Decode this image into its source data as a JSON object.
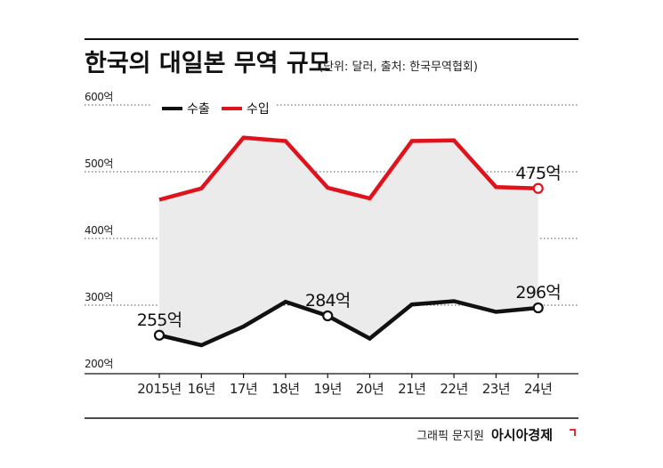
{
  "chart_data": {
    "type": "line",
    "title": "한국의 대일본 무역 규모",
    "subtitle": "(단위: 달러, 출처: 한국무역협회)",
    "categories": [
      "2015년",
      "16년",
      "17년",
      "18년",
      "19년",
      "20년",
      "21년",
      "22년",
      "23년",
      "24년"
    ],
    "series": [
      {
        "name": "수출",
        "color": "#111111",
        "values": [
          255,
          240,
          268,
          305,
          284,
          250,
          301,
          306,
          290,
          296
        ]
      },
      {
        "name": "수입",
        "color": "#e0121b",
        "values": [
          458,
          475,
          551,
          546,
          476,
          460,
          546,
          547,
          477,
          475
        ]
      }
    ],
    "ylim": [
      200,
      600
    ],
    "yticks": [
      200,
      300,
      400,
      500,
      600
    ],
    "ytick_labels": [
      "200억",
      "300억",
      "400억",
      "500억",
      "600억"
    ],
    "data_labels": [
      {
        "series": 0,
        "index": 0,
        "text": "255억"
      },
      {
        "series": 0,
        "index": 4,
        "text": "284억"
      },
      {
        "series": 0,
        "index": 9,
        "text": "296억"
      },
      {
        "series": 1,
        "index": 9,
        "text": "475억"
      }
    ],
    "grid": "dotted-horizontal",
    "legend": "top-left",
    "fill_between": "#ebebeb"
  },
  "credit": {
    "author": "그래픽 문지원",
    "brand": "아시아경제"
  }
}
